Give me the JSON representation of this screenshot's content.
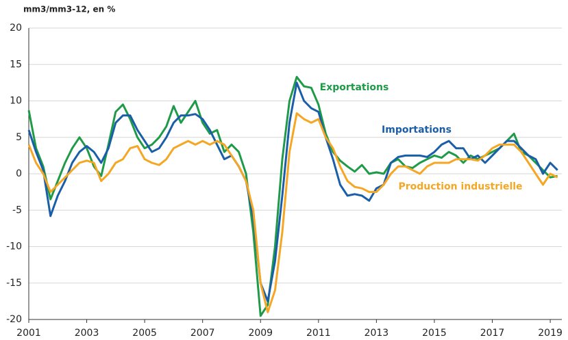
{
  "chart_data": {
    "type": "line",
    "ylabel": "mm3/mm3-12,  en %",
    "x": [
      2001,
      2001.25,
      2001.5,
      2001.75,
      2002,
      2002.25,
      2002.5,
      2002.75,
      2003,
      2003.25,
      2003.5,
      2003.75,
      2004,
      2004.25,
      2004.5,
      2004.75,
      2005,
      2005.25,
      2005.5,
      2005.75,
      2006,
      2006.25,
      2006.5,
      2006.75,
      2007,
      2007.25,
      2007.5,
      2007.75,
      2008,
      2008.25,
      2008.5,
      2008.75,
      2009,
      2009.25,
      2009.5,
      2009.75,
      2010,
      2010.25,
      2010.5,
      2010.75,
      2011,
      2011.25,
      2011.5,
      2011.75,
      2012,
      2012.25,
      2012.5,
      2012.75,
      2013,
      2013.25,
      2013.5,
      2013.75,
      2014,
      2014.25,
      2014.5,
      2014.75,
      2015,
      2015.25,
      2015.5,
      2015.75,
      2016,
      2016.25,
      2016.5,
      2016.75,
      2017,
      2017.25,
      2017.5,
      2017.75,
      2018,
      2018.25,
      2018.5,
      2018.75,
      2019,
      2019.25
    ],
    "series": [
      {
        "name": "Exportations",
        "color": "#1f9a48",
        "values": [
          8.7,
          3.5,
          1,
          -3.5,
          -1,
          1.5,
          3.5,
          5,
          3.5,
          1,
          -0.3,
          4,
          8.5,
          9.5,
          7.5,
          5,
          3.5,
          4,
          5,
          6.5,
          9.3,
          7,
          8.5,
          10,
          7,
          5.5,
          6,
          3,
          4,
          3,
          0,
          -8,
          -19.5,
          -18,
          -10,
          2,
          10,
          13.3,
          12,
          11.8,
          9.5,
          5.5,
          3,
          1.8,
          1,
          0.3,
          1.2,
          0,
          0.2,
          0,
          1.5,
          2,
          1,
          0.8,
          1.5,
          2,
          2.5,
          2.2,
          3,
          2.5,
          1.5,
          2.5,
          2,
          2.5,
          3,
          3.5,
          4.5,
          5.5,
          3,
          2.5,
          1.5,
          0.5,
          -0.5,
          -0.3
        ]
      },
      {
        "name": "Importations",
        "color": "#1a5ea8",
        "values": [
          6,
          3,
          0.5,
          -5.8,
          -3,
          -1,
          1.5,
          3,
          3.8,
          3,
          1.5,
          3.5,
          7,
          8,
          8,
          6,
          4.5,
          3,
          3.5,
          5,
          7,
          8,
          8,
          8.2,
          7.5,
          6,
          4,
          2,
          2.5,
          1,
          -1,
          -6,
          -15,
          -17.5,
          -12,
          -3,
          7,
          12.5,
          10,
          9,
          8.5,
          5,
          2,
          -1.5,
          -3,
          -2.8,
          -3,
          -3.7,
          -2,
          -1.5,
          1.5,
          2.3,
          2.5,
          2.5,
          2.5,
          2.3,
          3,
          4,
          4.5,
          3.5,
          3.5,
          2,
          2.5,
          1.5,
          2.5,
          3.5,
          4.5,
          4.5,
          3.5,
          2.5,
          2,
          0,
          1.5,
          0.5
        ]
      },
      {
        "name": "Production industrielle",
        "color": "#f5a623",
        "values": [
          4,
          1.5,
          0,
          -2.5,
          -1.5,
          -0.5,
          0.5,
          1.5,
          1.8,
          1.5,
          -1,
          0,
          1.5,
          2,
          3.5,
          3.8,
          2,
          1.5,
          1.2,
          2,
          3.5,
          4,
          4.5,
          4,
          4.5,
          4,
          4.5,
          4,
          2.5,
          1,
          -1,
          -5,
          -15,
          -19,
          -16,
          -8,
          3,
          8.3,
          7.5,
          7,
          7.5,
          5,
          3.5,
          1,
          -1,
          -1.8,
          -2,
          -2.5,
          -2.5,
          -1.5,
          0,
          1,
          1,
          0.5,
          0,
          1,
          1.5,
          1.5,
          1.5,
          2,
          2,
          2,
          1.8,
          2.5,
          3.5,
          4,
          4,
          4,
          3,
          1.5,
          0,
          -1.5,
          0,
          -0.5
        ]
      }
    ],
    "xlim": [
      2001,
      2019.4
    ],
    "xticks": [
      2001,
      2003,
      2005,
      2007,
      2009,
      2011,
      2013,
      2015,
      2017,
      2019
    ],
    "ylim": [
      -20,
      20
    ],
    "yticks": [
      -20,
      -15,
      -10,
      -5,
      0,
      5,
      10,
      15,
      20
    ],
    "grid": true
  }
}
